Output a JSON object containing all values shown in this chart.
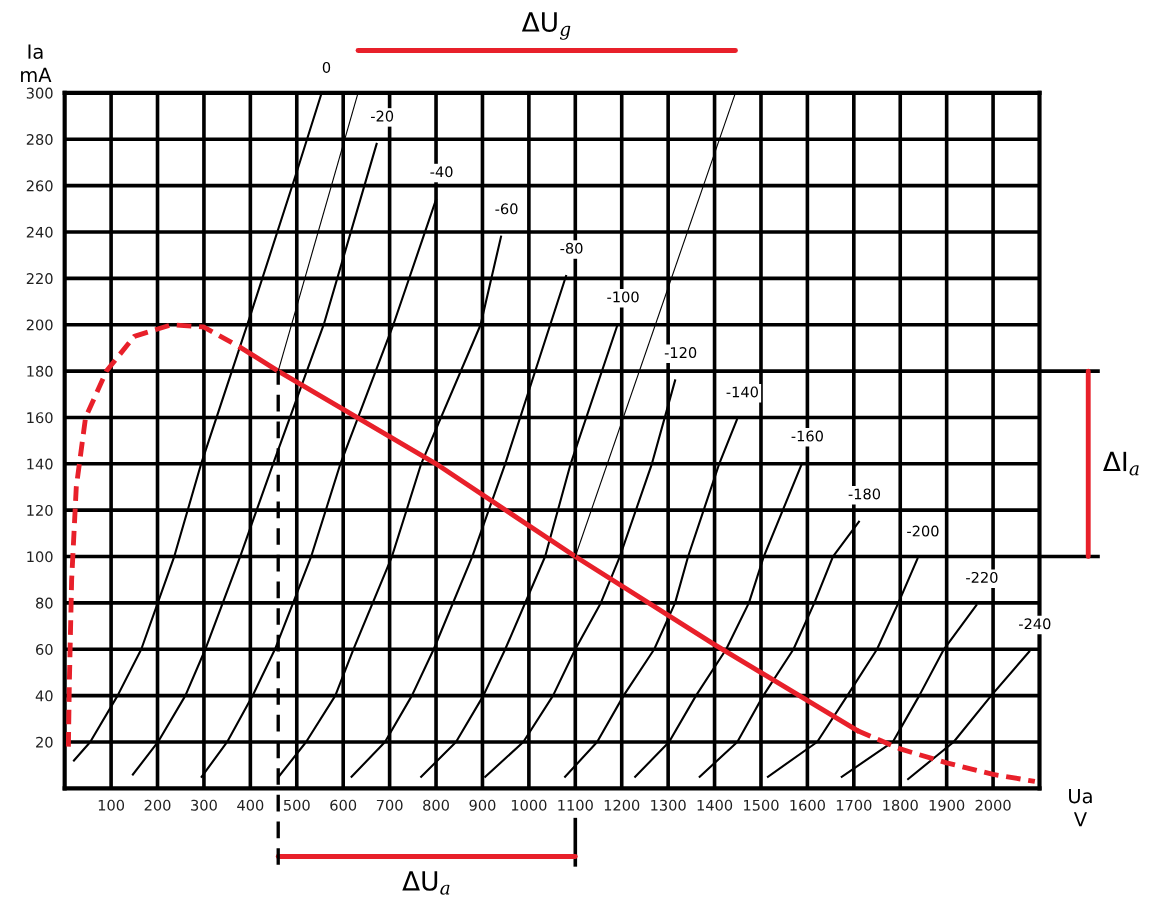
{
  "chart_data": {
    "type": "line",
    "xlabel": "Ua\nV",
    "ylabel": "Ia\nmA",
    "xlim": [
      0,
      2100
    ],
    "ylim": [
      0,
      300
    ],
    "xticks": [
      100,
      200,
      300,
      400,
      500,
      600,
      700,
      800,
      900,
      1000,
      1100,
      1200,
      1300,
      1400,
      1500,
      1600,
      1700,
      1800,
      1900,
      2000
    ],
    "yticks": [
      20,
      40,
      60,
      80,
      100,
      120,
      140,
      160,
      180,
      200,
      220,
      240,
      260,
      280,
      300
    ],
    "grid": true,
    "marker": "none",
    "series": [
      {
        "name": "0",
        "color": "#000000",
        "x": [
          20,
          55,
          114,
          165,
          236,
          294,
          400,
          500,
          552
        ],
        "values": [
          12,
          20,
          40,
          60,
          100,
          140,
          204,
          266,
          299
        ]
      },
      {
        "name": "-20",
        "color": "#000000",
        "x": [
          147,
          201,
          260,
          303,
          378,
          449,
          558,
          672
        ],
        "values": [
          6,
          20,
          40,
          60,
          100,
          140,
          200,
          278
        ]
      },
      {
        "name": "-40",
        "color": "#000000",
        "x": [
          295,
          350,
          405,
          453,
          531,
          594,
          708,
          800
        ],
        "values": [
          5,
          20,
          40,
          60,
          100,
          140,
          200,
          254
        ]
      },
      {
        "name": "-60",
        "color": "#000000",
        "x": [
          461,
          520,
          583,
          622,
          705,
          768,
          896,
          940
        ],
        "values": [
          5,
          20,
          40,
          60,
          100,
          140,
          200,
          238
        ]
      },
      {
        "name": "-80",
        "color": "#000000",
        "x": [
          618,
          690,
          748,
          795,
          878,
          949,
          1080
        ],
        "values": [
          5,
          20,
          40,
          60,
          100,
          140,
          221
        ]
      },
      {
        "name": "-100",
        "color": "#000000",
        "x": [
          768,
          843,
          902,
          949,
          1035,
          1090,
          1191
        ],
        "values": [
          5,
          20,
          40,
          60,
          100,
          140,
          200
        ]
      },
      {
        "name": "-120",
        "color": "#000000",
        "x": [
          906,
          988,
          1052,
          1100,
          1155,
          1196,
          1265,
          1315
        ],
        "values": [
          5,
          20,
          40,
          60,
          80,
          100,
          140,
          176
        ]
      },
      {
        "name": "-140",
        "color": "#000000",
        "x": [
          1078,
          1147,
          1204,
          1270,
          1315,
          1343,
          1410,
          1448
        ],
        "values": [
          5,
          20,
          40,
          60,
          80,
          100,
          140,
          159
        ]
      },
      {
        "name": "-160",
        "color": "#000000",
        "x": [
          1229,
          1302,
          1360,
          1425,
          1474,
          1506,
          1588
        ],
        "values": [
          5,
          20,
          40,
          60,
          80,
          100,
          140
        ]
      },
      {
        "name": "-180",
        "color": "#000000",
        "x": [
          1368,
          1449,
          1505,
          1570,
          1615,
          1655,
          1711
        ],
        "values": [
          5,
          20,
          40,
          60,
          80,
          100,
          115
        ]
      },
      {
        "name": "-200",
        "color": "#000000",
        "x": [
          1515,
          1621,
          1686,
          1750,
          1796,
          1837
        ],
        "values": [
          5,
          20,
          40,
          60,
          80,
          99
        ]
      },
      {
        "name": "-220",
        "color": "#000000",
        "x": [
          1674,
          1784,
          1841,
          1894,
          1964
        ],
        "values": [
          5,
          20,
          40,
          60,
          79
        ]
      },
      {
        "name": "-240",
        "color": "#000000",
        "x": [
          1817,
          1915,
          1996,
          2078
        ],
        "values": [
          4,
          20,
          40,
          59
        ]
      },
      {
        "color": "#e8202a",
        "line_style": "dashed",
        "x": [
          8,
          10,
          15,
          25,
          45,
          90,
          150,
          230,
          300,
          380
        ],
        "values": [
          18,
          45,
          90,
          130,
          160,
          180,
          195,
          200,
          199,
          190
        ]
      },
      {
        "color": "#e8202a",
        "line_style": "solid",
        "x": [
          380,
          460,
          800,
          1100,
          1400,
          1707
        ],
        "values": [
          190,
          180,
          140,
          100,
          62,
          25
        ]
      },
      {
        "color": "#e8202a",
        "line_style": "dashed",
        "x": [
          1707,
          1800,
          1900,
          2000,
          2090
        ],
        "values": [
          25,
          17,
          11,
          6,
          3
        ]
      },
      {
        "color": "#000000",
        "x": [
          460,
          632
        ],
        "values": [
          180,
          300
        ]
      },
      {
        "color": "#000000",
        "x": [
          1100,
          1445
        ],
        "values": [
          100,
          300
        ]
      }
    ],
    "ref_lines": [
      {
        "axis": "x",
        "value": 460,
        "color": "#000000",
        "line_style": "dashed"
      }
    ],
    "annotations": [
      "ΔU$_{g}$",
      "ΔU$_{a}$",
      "ΔI$_{a}$"
    ]
  }
}
